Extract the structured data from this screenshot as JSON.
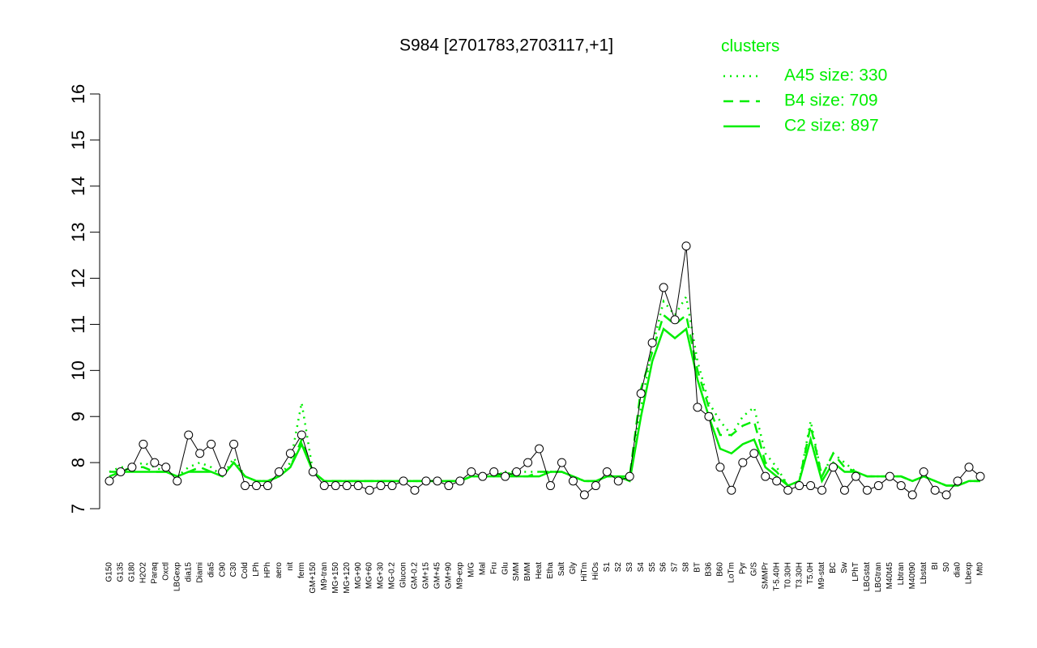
{
  "chart_data": {
    "type": "line",
    "title": "S984 [2701783,2703117,+1]",
    "legend_title": "clusters",
    "legend": "top-right",
    "point_color": "#000000",
    "categories": [
      "G150",
      "G135",
      "G180",
      "H2O2",
      "Paraq",
      "Oxctl",
      "LBGexp",
      "dia15",
      "Diami",
      "dia5",
      "C90",
      "C30",
      "Cold",
      "LPh",
      "HPh",
      "aero",
      "nit",
      "ferm",
      "GM+150",
      "M9-tran",
      "MG+150",
      "MG+120",
      "MG+90",
      "MG+60",
      "MG+30",
      "MG-0.2",
      "Glucon",
      "GM-0.2",
      "GM+15",
      "GM+45",
      "GM+90",
      "M9-exp",
      "M/G",
      "Mal",
      "Fru",
      "Glu",
      "SMM",
      "BMM",
      "Heat",
      "Etha",
      "Salt",
      "Gly",
      "HiTm",
      "HiOs",
      "S1",
      "S2",
      "S3",
      "S4",
      "S5",
      "S6",
      "S7",
      "S8",
      "BT",
      "B36",
      "B60",
      "LoTm",
      "Pyr",
      "G/S",
      "SMMPr",
      "T-5.40H",
      "T0.30H",
      "T3.30H",
      "T5.0H",
      "M9-stat",
      "BC",
      "Sw",
      "LPhT",
      "LBGstat",
      "LBGtran",
      "M40t45",
      "Lbtran",
      "M40t90",
      "Lbstat",
      "BI",
      "S0",
      "dia0",
      "Lbexp",
      "Mt0"
    ],
    "values": [
      7.6,
      7.8,
      7.9,
      8.4,
      8.0,
      7.9,
      7.6,
      8.6,
      8.2,
      8.4,
      7.8,
      8.4,
      7.5,
      7.5,
      7.5,
      7.8,
      8.2,
      8.6,
      7.8,
      7.5,
      7.5,
      7.5,
      7.5,
      7.4,
      7.5,
      7.5,
      7.6,
      7.4,
      7.6,
      7.6,
      7.5,
      7.6,
      7.8,
      7.7,
      7.8,
      7.7,
      7.8,
      8.0,
      8.3,
      7.5,
      8.0,
      7.6,
      7.3,
      7.5,
      7.8,
      7.6,
      7.7,
      9.5,
      10.6,
      11.8,
      11.1,
      12.7,
      9.2,
      9.0,
      7.9,
      7.4,
      8.0,
      8.2,
      7.7,
      7.6,
      7.4,
      7.5,
      7.5,
      7.4,
      7.9,
      7.4,
      7.7,
      7.4,
      7.5,
      7.7,
      7.5,
      7.3,
      7.8,
      7.4,
      7.3,
      7.6,
      7.9,
      7.7
    ],
    "series": [
      {
        "name": "A45 size: 330",
        "color": "#00ee00",
        "style": "dotted",
        "values": [
          7.8,
          7.9,
          7.9,
          8.0,
          7.9,
          7.8,
          7.7,
          7.9,
          8.0,
          7.9,
          7.7,
          8.1,
          7.7,
          7.6,
          7.6,
          7.7,
          8.0,
          9.3,
          7.8,
          7.6,
          7.6,
          7.6,
          7.6,
          7.6,
          7.6,
          7.6,
          7.6,
          7.6,
          7.6,
          7.6,
          7.6,
          7.6,
          7.7,
          7.7,
          7.7,
          7.8,
          7.8,
          7.8,
          7.8,
          7.8,
          7.8,
          7.7,
          7.6,
          7.6,
          7.7,
          7.7,
          7.7,
          9.2,
          10.5,
          11.5,
          11.2,
          11.6,
          10.2,
          9.3,
          8.9,
          8.6,
          9.0,
          9.2,
          8.2,
          7.9,
          7.5,
          7.6,
          8.9,
          7.7,
          8.2,
          8.0,
          7.8,
          7.7,
          7.7,
          7.7,
          7.7,
          7.6,
          7.7,
          7.6,
          7.5,
          7.5,
          7.6,
          7.6
        ]
      },
      {
        "name": "B4 size: 709",
        "color": "#00ee00",
        "style": "dashed",
        "values": [
          7.8,
          7.8,
          7.9,
          7.9,
          7.8,
          7.8,
          7.7,
          7.8,
          7.9,
          7.8,
          7.7,
          8.0,
          7.7,
          7.6,
          7.6,
          7.7,
          7.9,
          8.5,
          7.8,
          7.6,
          7.6,
          7.6,
          7.6,
          7.6,
          7.6,
          7.6,
          7.6,
          7.6,
          7.6,
          7.6,
          7.6,
          7.6,
          7.7,
          7.7,
          7.7,
          7.8,
          7.7,
          7.7,
          7.8,
          7.8,
          7.8,
          7.7,
          7.6,
          7.6,
          7.7,
          7.7,
          7.7,
          9.6,
          10.4,
          11.2,
          11.0,
          11.2,
          10.0,
          9.2,
          8.6,
          8.6,
          8.8,
          8.9,
          8.0,
          7.8,
          7.5,
          7.6,
          8.8,
          7.7,
          8.2,
          7.9,
          7.8,
          7.7,
          7.7,
          7.7,
          7.7,
          7.6,
          7.7,
          7.6,
          7.5,
          7.5,
          7.6,
          7.6
        ]
      },
      {
        "name": "C2 size: 897",
        "color": "#00ee00",
        "style": "solid",
        "values": [
          7.7,
          7.8,
          7.8,
          7.8,
          7.8,
          7.8,
          7.7,
          7.8,
          7.8,
          7.8,
          7.7,
          8.0,
          7.7,
          7.6,
          7.6,
          7.7,
          7.9,
          8.4,
          7.8,
          7.6,
          7.6,
          7.6,
          7.6,
          7.6,
          7.6,
          7.6,
          7.6,
          7.6,
          7.6,
          7.6,
          7.6,
          7.6,
          7.7,
          7.7,
          7.7,
          7.7,
          7.7,
          7.7,
          7.7,
          7.8,
          7.8,
          7.7,
          7.6,
          7.6,
          7.7,
          7.7,
          7.6,
          9.0,
          10.2,
          10.9,
          10.7,
          10.9,
          9.8,
          9.0,
          8.3,
          8.2,
          8.4,
          8.5,
          7.9,
          7.7,
          7.5,
          7.6,
          8.5,
          7.6,
          8.0,
          7.8,
          7.8,
          7.7,
          7.7,
          7.7,
          7.7,
          7.6,
          7.7,
          7.6,
          7.5,
          7.5,
          7.6,
          7.6
        ]
      }
    ],
    "ylim": [
      7,
      16
    ],
    "yticks": [
      7,
      8,
      9,
      10,
      11,
      12,
      13,
      14,
      15,
      16
    ]
  }
}
